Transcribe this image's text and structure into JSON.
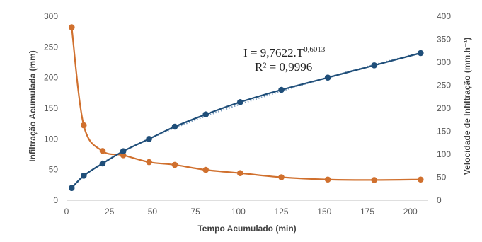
{
  "chart_data": {
    "type": "line",
    "xlabel": "Tempo Acumulado (min)",
    "ylabel_left": "Infiltração Acumulada (mm)",
    "ylabel_right": "Velocidade de Infiltração (mm.h⁻¹)",
    "xlim": [
      0,
      210
    ],
    "ylim_left": [
      0,
      300
    ],
    "ylim_right": [
      0,
      400
    ],
    "x_ticks": [
      "0",
      "25",
      "50",
      "75",
      "100",
      "125",
      "150",
      "175",
      "200"
    ],
    "y_left_ticks": [
      "0",
      "50",
      "100",
      "150",
      "200",
      "250",
      "300"
    ],
    "y_right_ticks": [
      "0",
      "50",
      "100",
      "150",
      "200",
      "250",
      "300",
      "350",
      "400"
    ],
    "grid": false,
    "series": [
      {
        "axis": "left",
        "color": "#1f4e79",
        "x": [
          3,
          10,
          21,
          33,
          48,
          63,
          81,
          101,
          125,
          152,
          179,
          206
        ],
        "y": [
          20,
          40,
          60,
          80,
          100,
          120,
          140,
          160,
          180,
          200,
          220,
          240
        ]
      },
      {
        "axis": "right",
        "color": "#d0702e",
        "x": [
          3,
          10,
          21,
          33,
          48,
          63,
          81,
          101,
          125,
          152,
          179,
          206
        ],
        "y": [
          376,
          163,
          107,
          98,
          83,
          77,
          66,
          59,
          50,
          45,
          44,
          45
        ]
      }
    ],
    "trendline": {
      "of_series": 0,
      "style": "dotted",
      "color": "#7f9fbf",
      "coef": 9.7622,
      "exp": 0.6013
    },
    "annotations": {
      "equation_main": "I = 9,7622.T",
      "equation_exp": "0,6013",
      "r2": "R² = 0,9996"
    }
  }
}
